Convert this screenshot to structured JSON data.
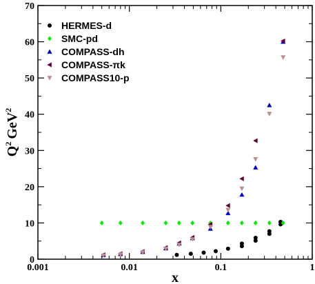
{
  "chart_data": {
    "type": "scatter",
    "title": "",
    "xlabel": "x",
    "ylabel": "Q",
    "ylabel_sup": "2",
    "ylabel_unit": "GeV",
    "ylabel_unit_sup": "2",
    "x_scale": "log",
    "xlim": [
      0.001,
      1
    ],
    "ylim": [
      0,
      70
    ],
    "x_ticks": [
      0.001,
      0.01,
      0.1,
      1
    ],
    "x_tick_labels": [
      "0.001",
      "0.01",
      "0.1",
      "1"
    ],
    "y_ticks": [
      0,
      10,
      20,
      30,
      40,
      50,
      60,
      70
    ],
    "y_tick_labels": [
      "0",
      "10",
      "20",
      "30",
      "40",
      "50",
      "60",
      "70"
    ],
    "grid": false,
    "legend_position": "top-left",
    "series": [
      {
        "name": "HERMES-d",
        "marker": "circle",
        "color": "#000000",
        "points": [
          [
            0.033,
            1.2
          ],
          [
            0.047,
            1.5
          ],
          [
            0.065,
            1.8
          ],
          [
            0.088,
            2.2
          ],
          [
            0.12,
            2.9
          ],
          [
            0.17,
            3.6
          ],
          [
            0.17,
            4.3
          ],
          [
            0.24,
            5.1
          ],
          [
            0.24,
            5.9
          ],
          [
            0.34,
            7.0
          ],
          [
            0.34,
            7.7
          ],
          [
            0.45,
            9.6
          ],
          [
            0.45,
            10.3
          ]
        ]
      },
      {
        "name": "SMC-pd",
        "marker": "diamond",
        "color": "#00ee00",
        "points": [
          [
            0.005,
            10
          ],
          [
            0.008,
            10
          ],
          [
            0.014,
            10
          ],
          [
            0.025,
            10
          ],
          [
            0.035,
            10
          ],
          [
            0.049,
            10
          ],
          [
            0.077,
            10
          ],
          [
            0.12,
            10
          ],
          [
            0.17,
            10
          ],
          [
            0.24,
            10
          ],
          [
            0.34,
            10
          ],
          [
            0.48,
            10
          ]
        ]
      },
      {
        "name": "COMPASS-dh",
        "marker": "triangle-up",
        "color": "#0000cc",
        "points": [
          [
            0.0052,
            1.1
          ],
          [
            0.008,
            1.4
          ],
          [
            0.014,
            2.0
          ],
          [
            0.025,
            3.0
          ],
          [
            0.035,
            4.3
          ],
          [
            0.049,
            5.8
          ],
          [
            0.077,
            8.4
          ],
          [
            0.12,
            12.7
          ],
          [
            0.17,
            17.8
          ],
          [
            0.24,
            25.3
          ],
          [
            0.34,
            42.5
          ],
          [
            0.48,
            60.0
          ]
        ]
      },
      {
        "name": "COMPASS-πk",
        "marker": "triangle-left",
        "color": "#660033",
        "points": [
          [
            0.0052,
            1.2
          ],
          [
            0.008,
            1.5
          ],
          [
            0.014,
            2.1
          ],
          [
            0.025,
            3.2
          ],
          [
            0.035,
            4.5
          ],
          [
            0.049,
            6.0
          ],
          [
            0.077,
            9.6
          ],
          [
            0.12,
            14.8
          ],
          [
            0.17,
            22.2
          ],
          [
            0.24,
            32.7
          ],
          [
            0.48,
            60.2
          ]
        ]
      },
      {
        "name": "COMPASS10-p",
        "marker": "triangle-down",
        "color": "#bc8f8f",
        "points": [
          [
            0.0052,
            1.0
          ],
          [
            0.008,
            1.3
          ],
          [
            0.014,
            1.9
          ],
          [
            0.025,
            2.9
          ],
          [
            0.035,
            4.0
          ],
          [
            0.049,
            5.5
          ],
          [
            0.077,
            8.9
          ],
          [
            0.12,
            13.6
          ],
          [
            0.17,
            19.5
          ],
          [
            0.24,
            27.6
          ],
          [
            0.34,
            40.1
          ],
          [
            0.48,
            55.7
          ]
        ]
      }
    ]
  }
}
